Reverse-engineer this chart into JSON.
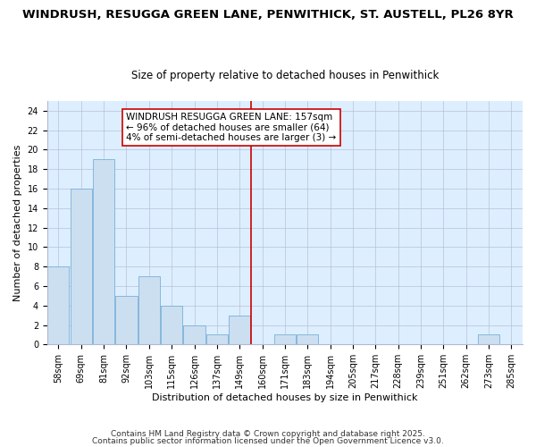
{
  "title_line1": "WINDRUSH, RESUGGA GREEN LANE, PENWITHICK, ST. AUSTELL, PL26 8YR",
  "title_line2": "Size of property relative to detached houses in Penwithick",
  "xlabel": "Distribution of detached houses by size in Penwithick",
  "ylabel": "Number of detached properties",
  "bin_labels": [
    "58sqm",
    "69sqm",
    "81sqm",
    "92sqm",
    "103sqm",
    "115sqm",
    "126sqm",
    "137sqm",
    "149sqm",
    "160sqm",
    "171sqm",
    "183sqm",
    "194sqm",
    "205sqm",
    "217sqm",
    "228sqm",
    "239sqm",
    "251sqm",
    "262sqm",
    "273sqm",
    "285sqm"
  ],
  "bar_heights": [
    8,
    16,
    19,
    5,
    7,
    4,
    2,
    1,
    3,
    0,
    1,
    1,
    0,
    0,
    0,
    0,
    0,
    0,
    0,
    1,
    0
  ],
  "bar_color": "#ccdff0",
  "bar_edge_color": "#7ab0d8",
  "vline_x_index": 9,
  "vline_color": "#cc0000",
  "annotation_text": "WINDRUSH RESUGGA GREEN LANE: 157sqm\n← 96% of detached houses are smaller (64)\n4% of semi-detached houses are larger (3) →",
  "annotation_box_color": "#ffffff",
  "annotation_border_color": "#cc0000",
  "ylim": [
    0,
    25
  ],
  "yticks": [
    0,
    2,
    4,
    6,
    8,
    10,
    12,
    14,
    16,
    18,
    20,
    22,
    24
  ],
  "fig_background_color": "#ffffff",
  "plot_bg_color": "#ddeeff",
  "footer_line1": "Contains HM Land Registry data © Crown copyright and database right 2025.",
  "footer_line2": "Contains public sector information licensed under the Open Government Licence v3.0.",
  "title_fontsize": 9.5,
  "subtitle_fontsize": 8.5,
  "axis_label_fontsize": 8,
  "tick_fontsize": 7,
  "annotation_fontsize": 7.5,
  "footer_fontsize": 6.5
}
